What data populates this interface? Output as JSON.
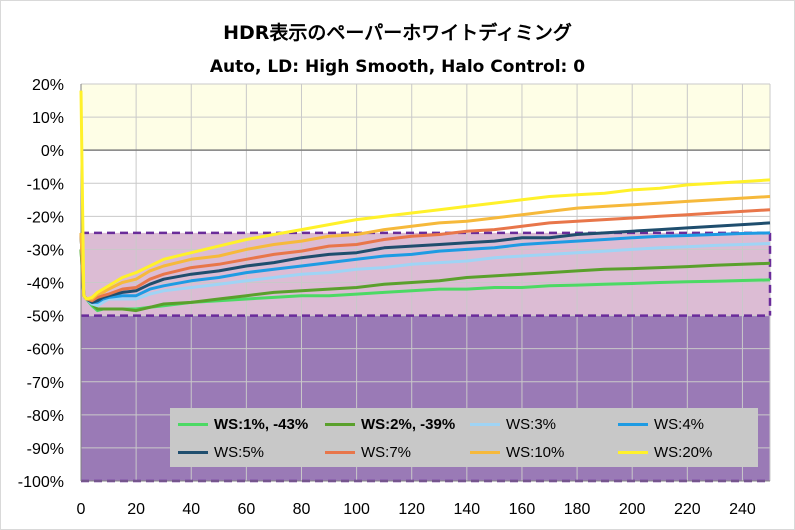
{
  "title": "HDR表示のペーパーホワイトディミング",
  "subtitle": "Auto, LD: High Smooth, Halo Control: 0",
  "chart_data": {
    "type": "line",
    "xlim": [
      0,
      250
    ],
    "ylim": [
      -100,
      20
    ],
    "x_ticks": [
      0,
      20,
      40,
      60,
      80,
      100,
      120,
      140,
      160,
      180,
      200,
      220,
      240
    ],
    "y_ticks": [
      20,
      10,
      0,
      -10,
      -20,
      -30,
      -40,
      -50,
      -60,
      -70,
      -80,
      -90,
      -100
    ],
    "x_tick_labels": [
      "0",
      "20",
      "40",
      "60",
      "80",
      "100",
      "120",
      "140",
      "160",
      "180",
      "200",
      "220",
      "240"
    ],
    "y_tick_labels": [
      "20%",
      "10%",
      "0%",
      "-10%",
      "-20%",
      "-30%",
      "-40%",
      "-50%",
      "-60%",
      "-70%",
      "-80%",
      "-90%",
      "-100%"
    ],
    "grid": true,
    "bands": [
      {
        "from": 0,
        "to": 20,
        "color": "#fefee6"
      },
      {
        "from": -25,
        "to": 0,
        "color": "#ffffff"
      },
      {
        "from": -50,
        "to": -25,
        "color": "#dcbcd4"
      },
      {
        "from": -100,
        "to": -50,
        "color": "#9a7ab6"
      }
    ],
    "dashed_lines": [
      -25,
      -50
    ],
    "legend_placement": "bottom-right",
    "x": [
      0,
      1,
      2,
      4,
      6,
      8,
      10,
      15,
      20,
      25,
      30,
      40,
      50,
      60,
      70,
      80,
      90,
      100,
      110,
      120,
      130,
      140,
      150,
      160,
      170,
      180,
      190,
      200,
      210,
      220,
      230,
      240,
      250
    ],
    "series": [
      {
        "name": "WS:1%, -43%",
        "bold": true,
        "color": "#4cd964",
        "values": [
          -30,
          -44,
          -45,
          -47,
          -48.5,
          -48,
          -48,
          -48,
          -48,
          -47.5,
          -47,
          -46,
          -45.5,
          -45,
          -44.5,
          -44,
          -44,
          -43.5,
          -43,
          -42.5,
          -42,
          -42,
          -41.5,
          -41.5,
          -41,
          -40.8,
          -40.5,
          -40.3,
          -40,
          -39.8,
          -39.6,
          -39.4,
          -39.2
        ]
      },
      {
        "name": "WS:2%, -39%",
        "bold": true,
        "color": "#5aa02c",
        "values": [
          -30,
          -44,
          -45,
          -46.5,
          -48,
          -48,
          -48,
          -48,
          -48.5,
          -47.5,
          -46.5,
          -46,
          -45,
          -44,
          -43,
          -42.5,
          -42,
          -41.5,
          -40.5,
          -40,
          -39.5,
          -38.5,
          -38,
          -37.5,
          -37,
          -36.5,
          -36,
          -35.8,
          -35.5,
          -35.2,
          -34.8,
          -34.5,
          -34.2
        ]
      },
      {
        "name": "WS:3%",
        "bold": false,
        "color": "#9fd4f5",
        "values": [
          -25,
          -44,
          -45,
          -46.5,
          -47,
          -46,
          -45,
          -45,
          -45,
          -43.5,
          -42.5,
          -41.5,
          -40.5,
          -39.5,
          -38.5,
          -37.5,
          -37,
          -36,
          -35.5,
          -34.5,
          -34,
          -33.5,
          -32.5,
          -32,
          -31.5,
          -31,
          -30.5,
          -30,
          -29.5,
          -29.2,
          -28.8,
          -28.5,
          -28.2
        ]
      },
      {
        "name": "WS:4%",
        "bold": false,
        "color": "#1e9be3",
        "values": [
          -25,
          -44,
          -45,
          -46,
          -46,
          -45,
          -44.5,
          -44,
          -44,
          -42,
          -41,
          -39.5,
          -38.5,
          -37,
          -36,
          -35,
          -34,
          -33,
          -32,
          -31.5,
          -30.5,
          -30,
          -29.5,
          -28.5,
          -28,
          -27.5,
          -27,
          -26.5,
          -26,
          -25.8,
          -25.5,
          -25.2,
          -25
        ]
      },
      {
        "name": "WS:5%",
        "bold": false,
        "color": "#1f4e6e",
        "values": [
          -25,
          -44,
          -45,
          -46,
          -45.5,
          -44.5,
          -44,
          -43,
          -42.5,
          -40.5,
          -39,
          -37.5,
          -36.5,
          -35,
          -34,
          -32.5,
          -31.5,
          -31,
          -29.5,
          -29,
          -28.5,
          -28,
          -27.5,
          -26.5,
          -26.5,
          -25.5,
          -25,
          -24.5,
          -24,
          -23.5,
          -23,
          -22.5,
          -22
        ]
      },
      {
        "name": "WS:7%",
        "bold": false,
        "color": "#e8764a",
        "values": [
          -25,
          -44,
          -45,
          -45.5,
          -44.5,
          -44,
          -43.5,
          -42,
          -41.5,
          -39,
          -37.5,
          -35.5,
          -34.5,
          -33,
          -31.5,
          -30.5,
          -29,
          -28.5,
          -27,
          -26,
          -25.5,
          -24.5,
          -24,
          -23,
          -22,
          -21.5,
          -21,
          -20.5,
          -20,
          -19.5,
          -19,
          -18.5,
          -18
        ]
      },
      {
        "name": "WS:10%",
        "bold": false,
        "color": "#f6b93b",
        "values": [
          -25,
          -44,
          -45,
          -45,
          -43.5,
          -43,
          -42,
          -40,
          -39,
          -36.5,
          -35,
          -33,
          -32,
          -30,
          -28.5,
          -27.5,
          -26,
          -25.5,
          -24,
          -23,
          -22,
          -21.5,
          -20.5,
          -19.5,
          -18.5,
          -17.5,
          -17,
          -16.5,
          -16,
          -15.5,
          -15,
          -14.5,
          -14
        ]
      },
      {
        "name": "WS:20%",
        "bold": false,
        "color": "#fff12a",
        "values": [
          18,
          -44,
          -45,
          -44.5,
          -43,
          -42,
          -41,
          -38.5,
          -37,
          -35,
          -33,
          -31,
          -29,
          -27,
          -25.5,
          -24,
          -22.5,
          -21,
          -20,
          -19,
          -18,
          -17,
          -16,
          -15,
          -14,
          -13.5,
          -13,
          -12,
          -11.5,
          -10.5,
          -10,
          -9.5,
          -9
        ]
      }
    ]
  }
}
